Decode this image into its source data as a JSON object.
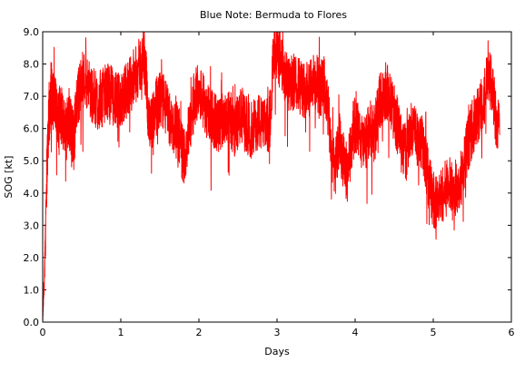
{
  "chart_data": {
    "type": "line",
    "title": "Blue Note: Bermuda to Flores",
    "xlabel": "Days",
    "ylabel": "SOG [kt]",
    "xlim": [
      0,
      6
    ],
    "ylim": [
      0,
      9
    ],
    "xticks": [
      "0",
      "1",
      "2",
      "3",
      "4",
      "5",
      "6"
    ],
    "yticks": [
      "0.0",
      "1.0",
      "2.0",
      "3.0",
      "4.0",
      "5.0",
      "6.0",
      "7.0",
      "8.0",
      "9.0"
    ],
    "grid": false,
    "legend": "none",
    "series_color": "#ff0000",
    "series": [
      {
        "x": [
          0.0,
          0.02,
          0.04,
          0.06,
          0.08,
          0.1,
          0.12,
          0.15,
          0.18,
          0.2,
          0.23,
          0.26,
          0.3,
          0.33,
          0.36,
          0.38,
          0.4,
          0.42,
          0.45,
          0.5,
          0.55,
          0.6,
          0.65,
          0.7,
          0.75,
          0.8,
          0.85,
          0.9,
          0.95,
          1.0,
          1.05,
          1.1,
          1.15,
          1.2,
          1.25,
          1.3,
          1.33,
          1.35,
          1.38,
          1.42,
          1.46,
          1.5,
          1.55,
          1.6,
          1.65,
          1.7,
          1.75,
          1.8,
          1.85,
          1.9,
          1.95,
          2.0,
          2.05,
          2.1,
          2.15,
          2.2,
          2.25,
          2.3,
          2.35,
          2.4,
          2.45,
          2.5,
          2.55,
          2.6,
          2.65,
          2.7,
          2.75,
          2.8,
          2.85,
          2.9,
          2.95,
          3.0,
          3.05,
          3.1,
          3.15,
          3.2,
          3.25,
          3.3,
          3.35,
          3.4,
          3.45,
          3.5,
          3.55,
          3.6,
          3.65,
          3.7,
          3.75,
          3.8,
          3.85,
          3.9,
          3.95,
          4.0,
          4.05,
          4.1,
          4.15,
          4.2,
          4.25,
          4.3,
          4.35,
          4.4,
          4.45,
          4.5,
          4.55,
          4.6,
          4.65,
          4.7,
          4.75,
          4.8,
          4.85,
          4.9,
          4.95,
          5.0,
          5.05,
          5.1,
          5.15,
          5.2,
          5.25,
          5.3,
          5.35,
          5.4,
          5.45,
          5.5,
          5.55,
          5.6,
          5.65,
          5.7,
          5.75,
          5.8,
          5.85
        ],
        "y": [
          0.1,
          1.2,
          3.5,
          5.2,
          6.3,
          6.8,
          7.0,
          6.9,
          6.6,
          6.4,
          6.5,
          6.2,
          6.0,
          6.3,
          6.1,
          5.8,
          5.6,
          6.4,
          7.0,
          7.4,
          7.6,
          7.2,
          7.0,
          6.8,
          6.9,
          7.1,
          7.2,
          7.0,
          6.8,
          6.9,
          7.1,
          7.3,
          7.5,
          7.7,
          8.0,
          8.1,
          7.4,
          6.2,
          5.9,
          6.4,
          6.7,
          6.9,
          6.8,
          6.5,
          6.1,
          6.0,
          5.8,
          5.1,
          5.6,
          6.3,
          7.0,
          7.3,
          6.9,
          6.6,
          6.5,
          6.2,
          6.0,
          6.3,
          6.5,
          6.3,
          6.0,
          6.2,
          6.4,
          6.1,
          5.9,
          6.0,
          6.3,
          6.1,
          6.0,
          6.2,
          8.0,
          8.3,
          8.0,
          7.6,
          7.3,
          7.4,
          7.5,
          7.3,
          7.2,
          7.4,
          7.5,
          7.3,
          7.2,
          7.4,
          6.6,
          5.2,
          4.8,
          5.6,
          5.0,
          4.6,
          5.4,
          6.2,
          5.8,
          5.5,
          5.7,
          6.0,
          5.8,
          6.8,
          7.0,
          7.2,
          6.8,
          6.5,
          6.0,
          5.6,
          5.2,
          5.8,
          6.2,
          5.7,
          5.6,
          5.0,
          4.3,
          3.8,
          3.7,
          3.9,
          4.1,
          4.3,
          4.0,
          4.2,
          4.4,
          5.0,
          5.6,
          6.0,
          6.3,
          6.6,
          7.0,
          7.6,
          7.4,
          6.4,
          5.8
        ]
      }
    ]
  }
}
